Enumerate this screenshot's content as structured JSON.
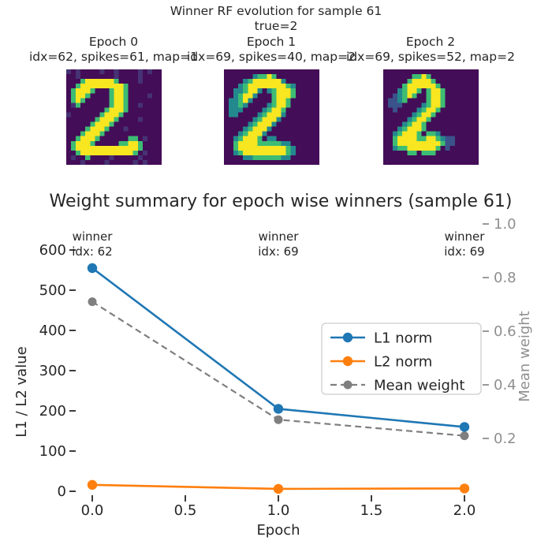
{
  "suptitle": {
    "line1": "Winner RF evolution for sample 61",
    "line2": "true=2"
  },
  "viridis_palette": {
    ".": "#440d57",
    "n": "#463274",
    "b": "#3b528b",
    "t": "#23898e",
    "g": "#3dbc74",
    "y": "#f8e621"
  },
  "panels": [
    {
      "title": "Epoch 0",
      "subtitle": "idx=62, spikes=61, map=1",
      "grid": [
        "n.n....n..n....n.n..",
        "..n.......n....n....",
        "...gyyyyyyg....n....",
        "..gyyyyyyyyyg.......",
        ".gyyyg...gyyg.......",
        ".gyyg....gyyg....n..",
        ".gyg.....gyyg.......",
        ".ng......gyyg..n....",
        "........gyyyg.......",
        "n......gyyyg........",
        "......gyyyg....n....",
        ".....gyyyg..........",
        "....gyyyg...n.......",
        "...gyyyg............",
        "..gyyyg......gg.n...",
        ".gyyyg.....ggyyg....",
        ".gyyyyyyyyyyyyyg....",
        "..gyyyyyyyyyyyg.n...",
        ".n..g....n.....n....",
        "...n....n.....n.n..."
      ]
    },
    {
      "title": "Epoch 1",
      "subtitle": "idx=69, spikes=40, map=2",
      "grid": [
        "....................",
        "......tggyg.........",
        "....tgyyyyyyt.......",
        "...tgyyyyyyyygt.....",
        "..ttgyyt.tgyyyg.....",
        "..tgyyt...gyyyg.....",
        ".ttgyt....gyyg......",
        ".ttgt....tgyyg......",
        ".ttt....tgyyg.......",
        ".tt....tgyyyt.......",
        "......tgyyyt........",
        ".....tgyyyt.........",
        "....tgyyyt..........",
        "...tgyyyt...........",
        "..tgyyyg.tt.........",
        "..gyyyygggggtt......",
        "..gyyyyyyyyyygt.....",
        "..tgyyyyyyyyygt.....",
        "....ttggggggtt......",
        "...................."
      ]
    },
    {
      "title": "Epoch 2",
      "subtitle": "idx=69, spikes=52, map=2",
      "grid": [
        "....................",
        "......ggyg..........",
        ".....gyyyyg.........",
        "....gyyyyyyg........",
        "...tgyyg.gyyg.......",
        "..btgyg..gyyg.......",
        ".bbtg....gyyg.......",
        ".bbb....tgyyg.......",
        "..b....tgyyg........",
        "......tgyyg.........",
        ".....tgyyg..........",
        "....tgyyg...........",
        "...tgyyyg...........",
        "..tgyyyg.ggt........",
        "..gyyyyggyygtbb.....",
        "..gyyyyyyyyygbb.....",
        "..tggyyyyyyg.b......",
        ".....gg.ggg.........",
        "....................",
        "...................."
      ]
    }
  ],
  "chart_data": {
    "type": "line",
    "title": "Weight summary for epoch wise winners (sample 61)",
    "xlabel": "Epoch",
    "ylabel_left": "L1 / L2 value",
    "ylabel_right": "Mean weight",
    "x": [
      0,
      1,
      2
    ],
    "xticks": [
      0.0,
      0.5,
      1.0,
      1.5,
      2.0
    ],
    "xlim": [
      0,
      2
    ],
    "yticks_left": [
      0,
      100,
      200,
      300,
      400,
      500,
      600
    ],
    "ylim_left": [
      0,
      600
    ],
    "yticks_right": [
      0.2,
      0.4,
      0.6,
      0.8,
      1.0
    ],
    "ylim_right": [
      0.2,
      1.0
    ],
    "grid": false,
    "legend_position": "center right",
    "series": [
      {
        "name": "L1 norm",
        "axis": "left",
        "color": "#1f77b4",
        "style": "solid",
        "values": [
          555,
          205,
          160
        ]
      },
      {
        "name": "L2 norm",
        "axis": "left",
        "color": "#ff7f0e",
        "style": "solid",
        "values": [
          16,
          6,
          7
        ]
      },
      {
        "name": "Mean weight",
        "axis": "right",
        "color": "#7f7f7f",
        "style": "dashed",
        "values": [
          0.71,
          0.27,
          0.21
        ]
      }
    ],
    "annotations": [
      {
        "x": 0,
        "lines": [
          "winner",
          "idx: 62"
        ]
      },
      {
        "x": 1,
        "lines": [
          "winner",
          "idx: 69"
        ]
      },
      {
        "x": 2,
        "lines": [
          "winner",
          "idx: 69"
        ]
      }
    ]
  },
  "colors": {
    "text": "#262626",
    "right_axis": "#8f8f8f",
    "legend_border": "#cccccc",
    "background": "#ffffff"
  }
}
